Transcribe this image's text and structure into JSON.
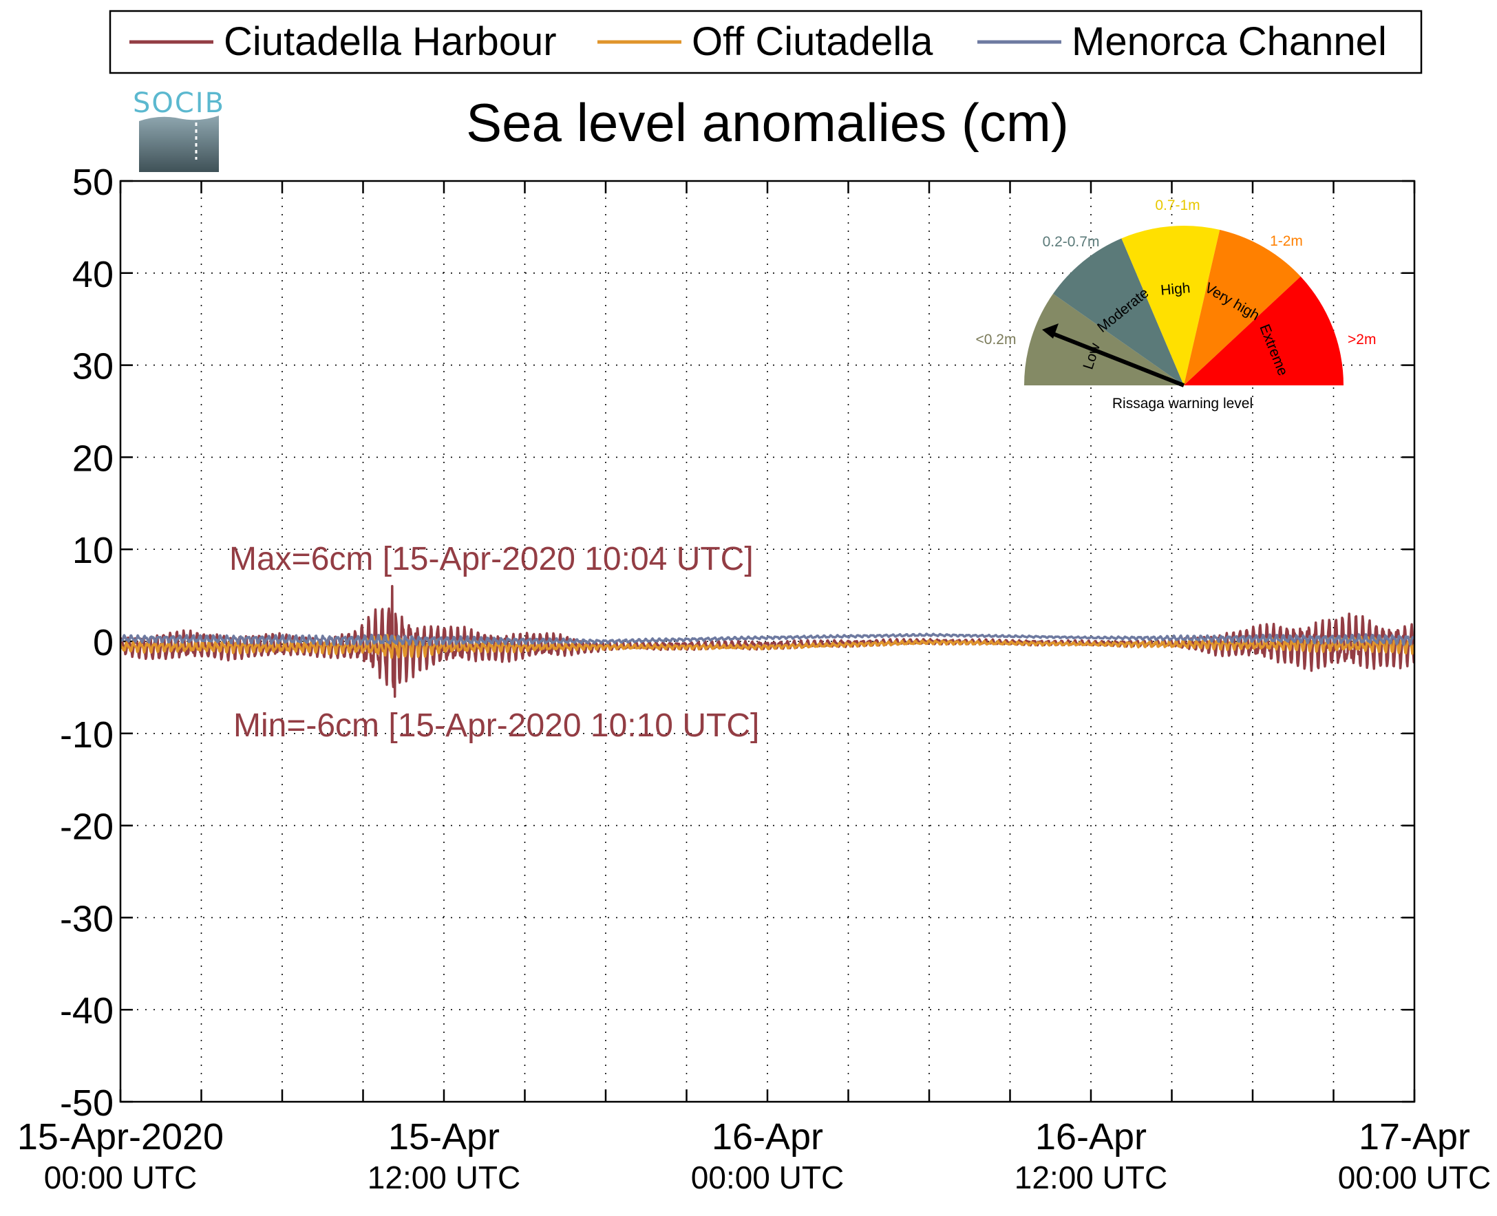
{
  "logo": {
    "text": "SOCIB"
  },
  "colors": {
    "harbour": "#933d44",
    "off": "#e0952b",
    "channel": "#6e7aa0",
    "gauge_low": "#848a65",
    "gauge_moderate": "#5b7a79",
    "gauge_high": "#ffe000",
    "gauge_very_high": "#ff8000",
    "gauge_extreme": "#ff0000",
    "gauge_label_low": "#7b7b5a",
    "gauge_label_moderate": "#5b7a79",
    "gauge_label_high": "#e8c800",
    "gauge_label_very_high": "#ff8000",
    "gauge_label_extreme": "#ff0000"
  },
  "chart_data": {
    "type": "line",
    "title": "Sea level anomalies (cm)",
    "xlabel": "",
    "ylabel": "",
    "ylim": [
      -50,
      50
    ],
    "yticks": [
      50,
      40,
      30,
      20,
      10,
      0,
      -10,
      -20,
      -30,
      -40,
      -50
    ],
    "xlim_hours": [
      0,
      48
    ],
    "xtick_labels": [
      {
        "h": 0,
        "line1": "15-Apr-2020",
        "line2": "00:00 UTC"
      },
      {
        "h": 12,
        "line1": "15-Apr",
        "line2": "12:00 UTC"
      },
      {
        "h": 24,
        "line1": "16-Apr",
        "line2": "00:00 UTC"
      },
      {
        "h": 36,
        "line1": "16-Apr",
        "line2": "12:00 UTC"
      },
      {
        "h": 48,
        "line1": "17-Apr",
        "line2": "00:00 UTC"
      }
    ],
    "grid": true,
    "legend_placement": "top",
    "series": [
      {
        "name": "Ciutadella Harbour",
        "color_key": "harbour",
        "envelope": [
          {
            "h": 0,
            "amp": 1.0
          },
          {
            "h": 1.5,
            "amp": 1.8
          },
          {
            "h": 5,
            "amp": 1.5
          },
          {
            "h": 7.5,
            "amp": 1.2
          },
          {
            "h": 8.8,
            "amp": 2.0
          },
          {
            "h": 10.07,
            "amp": 6.0
          },
          {
            "h": 11.0,
            "amp": 3.0
          },
          {
            "h": 13.0,
            "amp": 2.0
          },
          {
            "h": 16.0,
            "amp": 1.5
          },
          {
            "h": 18.0,
            "amp": 0.5
          },
          {
            "h": 20.0,
            "amp": 0.5
          },
          {
            "h": 24.0,
            "amp": 0.5
          },
          {
            "h": 30.0,
            "amp": 0.3
          },
          {
            "h": 36.0,
            "amp": 0.3
          },
          {
            "h": 39.0,
            "amp": 0.4
          },
          {
            "h": 41.0,
            "amp": 1.5
          },
          {
            "h": 43.0,
            "amp": 2.5
          },
          {
            "h": 45.5,
            "amp": 3.5
          },
          {
            "h": 48.0,
            "amp": 2.5
          }
        ],
        "baseline": [
          {
            "h": 0,
            "v": -0.5
          },
          {
            "h": 18,
            "v": -0.5
          },
          {
            "h": 24,
            "v": -0.4
          },
          {
            "h": 30,
            "v": 0.0
          },
          {
            "h": 36,
            "v": -0.2
          },
          {
            "h": 48,
            "v": -0.3
          }
        ],
        "max": {
          "value": 6,
          "h": 10.07
        },
        "min": {
          "value": -6,
          "h": 10.17
        }
      },
      {
        "name": "Off Ciutadella",
        "color_key": "off",
        "envelope": [
          {
            "h": 0,
            "amp": 0.6
          },
          {
            "h": 8.8,
            "amp": 0.8
          },
          {
            "h": 10.07,
            "amp": 1.5
          },
          {
            "h": 12.0,
            "amp": 0.8
          },
          {
            "h": 18.0,
            "amp": 0.3
          },
          {
            "h": 36.0,
            "amp": 0.2
          },
          {
            "h": 41.0,
            "amp": 0.6
          },
          {
            "h": 48.0,
            "amp": 1.0
          }
        ],
        "baseline": [
          {
            "h": 0,
            "v": -0.6
          },
          {
            "h": 18,
            "v": -0.6
          },
          {
            "h": 24,
            "v": -0.6
          },
          {
            "h": 30,
            "v": -0.1
          },
          {
            "h": 36,
            "v": -0.3
          },
          {
            "h": 48,
            "v": -0.4
          }
        ]
      },
      {
        "name": "Menorca Channel",
        "color_key": "channel",
        "envelope": [
          {
            "h": 0,
            "amp": 0.4
          },
          {
            "h": 10.07,
            "amp": 0.6
          },
          {
            "h": 18.0,
            "amp": 0.2
          },
          {
            "h": 36.0,
            "amp": 0.1
          },
          {
            "h": 41.0,
            "amp": 0.4
          },
          {
            "h": 48.0,
            "amp": 0.6
          }
        ],
        "baseline": [
          {
            "h": 0,
            "v": 0.3
          },
          {
            "h": 18,
            "v": 0.0
          },
          {
            "h": 24,
            "v": 0.4
          },
          {
            "h": 30,
            "v": 0.7
          },
          {
            "h": 36,
            "v": 0.4
          },
          {
            "h": 48,
            "v": 0.2
          }
        ]
      }
    ],
    "annotations": {
      "max_text": "Max=6cm [15-Apr-2020 10:04 UTC]",
      "min_text": "Min=-6cm [15-Apr-2020 10:10 UTC]"
    },
    "gauge": {
      "caption": "Rissaga warning level",
      "needle_level": "Low",
      "segments": [
        {
          "name": "Low",
          "range": "<0.2m",
          "color_key": "gauge_low",
          "label_color_key": "gauge_label_low"
        },
        {
          "name": "Moderate",
          "range": "0.2-0.7m",
          "color_key": "gauge_moderate",
          "label_color_key": "gauge_label_moderate"
        },
        {
          "name": "High",
          "range": "0.7-1m",
          "color_key": "gauge_high",
          "label_color_key": "gauge_label_high"
        },
        {
          "name": "Very high",
          "range": "1-2m",
          "color_key": "gauge_very_high",
          "label_color_key": "gauge_label_very_high"
        },
        {
          "name": "Extreme",
          "range": ">2m",
          "color_key": "gauge_extreme",
          "label_color_key": "gauge_label_extreme"
        }
      ]
    }
  }
}
